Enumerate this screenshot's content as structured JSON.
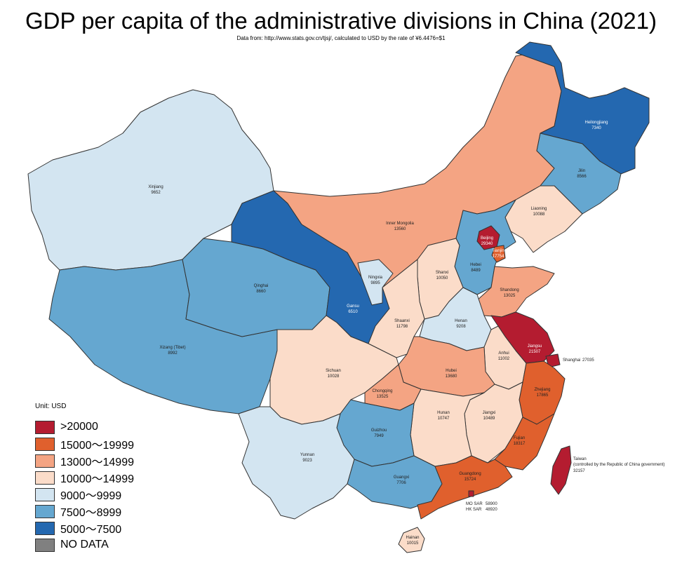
{
  "title": "GDP per capita of  the administrative divisions in China (2021)",
  "subtitle": "Data from: http://www.stats.gov.cn/tjsj/, calculated to USD by the rate of ¥6.4476=$1",
  "legend": {
    "unit_label": "Unit:  USD",
    "items": [
      {
        "label": ">20000",
        "color": "#b41c30"
      },
      {
        "label": "15000～19999",
        "color": "#e0602d"
      },
      {
        "label": "13000～14999",
        "color": "#f4a483"
      },
      {
        "label": "10000～14999",
        "color": "#fbdcc9"
      },
      {
        "label": "9000～9999",
        "color": "#d3e5f1"
      },
      {
        "label": "7500～8999",
        "color": "#65a7d0"
      },
      {
        "label": "5000～7500",
        "color": "#2468b0"
      },
      {
        "label": "NO DATA",
        "color": "#808080"
      }
    ]
  },
  "regions": [
    {
      "name": "Xinjiang",
      "value": "9652",
      "class_index": 4
    },
    {
      "name": "Xizang (Tibet)",
      "value": "8992",
      "class_index": 5
    },
    {
      "name": "Qinghai",
      "value": "8660",
      "class_index": 5
    },
    {
      "name": "Gansu",
      "value": "6510",
      "class_index": 6
    },
    {
      "name": "Inner Mongolia",
      "value": "13560",
      "class_index": 2
    },
    {
      "name": "Heilongjiang",
      "value": "7340",
      "class_index": 6
    },
    {
      "name": "Jilin",
      "value": "8566",
      "class_index": 5
    },
    {
      "name": "Liaoning",
      "value": "10088",
      "class_index": 3
    },
    {
      "name": "Beijing",
      "value": "29340",
      "class_index": 0
    },
    {
      "name": "Tianjin",
      "value": "17754",
      "class_index": 1
    },
    {
      "name": "Hebei",
      "value": "8489",
      "class_index": 5
    },
    {
      "name": "Shanxi",
      "value": "10050",
      "class_index": 3
    },
    {
      "name": "Ningxia",
      "value": "9895",
      "class_index": 4
    },
    {
      "name": "Shaanxi",
      "value": "11798",
      "class_index": 3
    },
    {
      "name": "Shandong",
      "value": "13025",
      "class_index": 2
    },
    {
      "name": "Henan",
      "value": "9208",
      "class_index": 4
    },
    {
      "name": "Jiangsu",
      "value": "21507",
      "class_index": 0
    },
    {
      "name": "Shanghai",
      "value": "27035",
      "class_index": 0
    },
    {
      "name": "Anhui",
      "value": "11002",
      "class_index": 3
    },
    {
      "name": "Hubei",
      "value": "13680",
      "class_index": 2
    },
    {
      "name": "Sichuan",
      "value": "10028",
      "class_index": 3
    },
    {
      "name": "Chongqing",
      "value": "13525",
      "class_index": 2
    },
    {
      "name": "Zhejiang",
      "value": "17865",
      "class_index": 1
    },
    {
      "name": "Hunan",
      "value": "10747",
      "class_index": 3
    },
    {
      "name": "Jiangxi",
      "value": "10489",
      "class_index": 3
    },
    {
      "name": "Fujian",
      "value": "18317",
      "class_index": 1
    },
    {
      "name": "Guizhou",
      "value": "7949",
      "class_index": 5
    },
    {
      "name": "Yunnan",
      "value": "9023",
      "class_index": 4
    },
    {
      "name": "Guangxi",
      "value": "7706",
      "class_index": 5
    },
    {
      "name": "Guangdong",
      "value": "15724",
      "class_index": 1
    },
    {
      "name": "Hainan",
      "value": "10015",
      "class_index": 3
    },
    {
      "name": "Taiwan",
      "value": "32157",
      "class_index": 0,
      "note": "(controlled by the Republic of China government)"
    },
    {
      "name": "MO SAR",
      "value": "58900",
      "class_index": 0
    },
    {
      "name": "HK SAR",
      "value": "48920",
      "class_index": 0
    }
  ]
}
